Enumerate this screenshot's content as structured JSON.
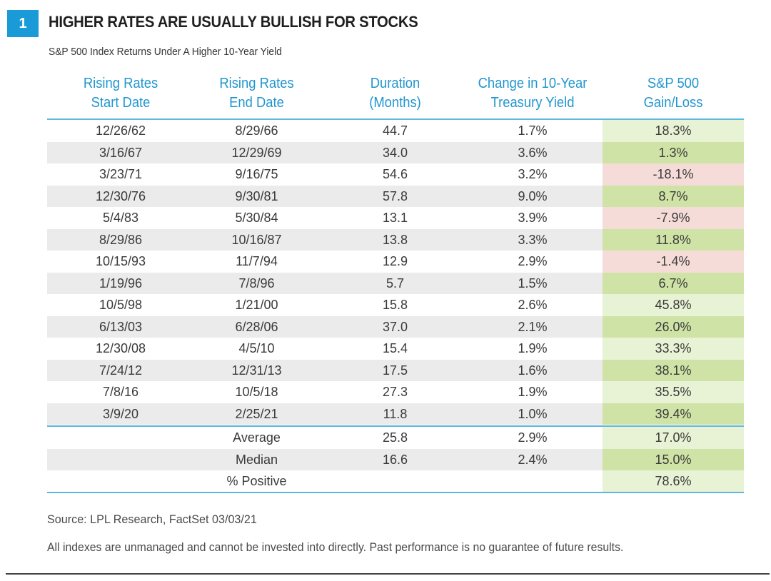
{
  "figure_number": "1",
  "title": "HIGHER RATES ARE USUALLY BULLISH FOR STOCKS",
  "subtitle": "S&P 500 Index Returns Under A Higher 10-Year Yield",
  "colors": {
    "accent": "#2196cf",
    "badge": "#1a9ad6",
    "rule": "#5fb6de",
    "row_shade": "#ebebeb",
    "gain_strong": "#cfe3a6",
    "gain_light": "#e8f2d4",
    "loss": "#f6dcd8"
  },
  "chart_data": {
    "type": "table",
    "title": "HIGHER RATES ARE USUALLY BULLISH FOR STOCKS",
    "subtitle": "S&P 500 Index Returns Under A Higher 10-Year Yield",
    "columns": [
      "Rising Rates\nStart Date",
      "Rising Rates\nEnd Date",
      "Duration\n(Months)",
      "Change in 10-Year\nTreasury Yield",
      "S&P 500\nGain/Loss"
    ],
    "column_headers": [
      [
        "Rising Rates",
        "Start Date"
      ],
      [
        "Rising Rates",
        "End Date"
      ],
      [
        "Duration",
        "(Months)"
      ],
      [
        "Change in 10-Year",
        "Treasury Yield"
      ],
      [
        "S&P 500",
        "Gain/Loss"
      ]
    ],
    "rows": [
      {
        "start": "12/26/62",
        "end": "8/29/66",
        "duration": "44.7",
        "yield_change": "1.7%",
        "gain_loss": "18.3%",
        "tone": "light"
      },
      {
        "start": "3/16/67",
        "end": "12/29/69",
        "duration": "34.0",
        "yield_change": "3.6%",
        "gain_loss": "1.3%",
        "tone": "strong"
      },
      {
        "start": "3/23/71",
        "end": "9/16/75",
        "duration": "54.6",
        "yield_change": "3.2%",
        "gain_loss": "-18.1%",
        "tone": "loss"
      },
      {
        "start": "12/30/76",
        "end": "9/30/81",
        "duration": "57.8",
        "yield_change": "9.0%",
        "gain_loss": "8.7%",
        "tone": "strong"
      },
      {
        "start": "5/4/83",
        "end": "5/30/84",
        "duration": "13.1",
        "yield_change": "3.9%",
        "gain_loss": "-7.9%",
        "tone": "loss"
      },
      {
        "start": "8/29/86",
        "end": "10/16/87",
        "duration": "13.8",
        "yield_change": "3.3%",
        "gain_loss": "11.8%",
        "tone": "strong"
      },
      {
        "start": "10/15/93",
        "end": "11/7/94",
        "duration": "12.9",
        "yield_change": "2.9%",
        "gain_loss": "-1.4%",
        "tone": "loss"
      },
      {
        "start": "1/19/96",
        "end": "7/8/96",
        "duration": "5.7",
        "yield_change": "1.5%",
        "gain_loss": "6.7%",
        "tone": "strong"
      },
      {
        "start": "10/5/98",
        "end": "1/21/00",
        "duration": "15.8",
        "yield_change": "2.6%",
        "gain_loss": "45.8%",
        "tone": "light"
      },
      {
        "start": "6/13/03",
        "end": "6/28/06",
        "duration": "37.0",
        "yield_change": "2.1%",
        "gain_loss": "26.0%",
        "tone": "strong"
      },
      {
        "start": "12/30/08",
        "end": "4/5/10",
        "duration": "15.4",
        "yield_change": "1.9%",
        "gain_loss": "33.3%",
        "tone": "light"
      },
      {
        "start": "7/24/12",
        "end": "12/31/13",
        "duration": "17.5",
        "yield_change": "1.6%",
        "gain_loss": "38.1%",
        "tone": "strong"
      },
      {
        "start": "7/8/16",
        "end": "10/5/18",
        "duration": "27.3",
        "yield_change": "1.9%",
        "gain_loss": "35.5%",
        "tone": "light"
      },
      {
        "start": "3/9/20",
        "end": "2/25/21",
        "duration": "11.8",
        "yield_change": "1.0%",
        "gain_loss": "39.4%",
        "tone": "strong"
      }
    ],
    "summary": [
      {
        "label": "Average",
        "duration": "25.8",
        "yield_change": "2.9%",
        "gain_loss": "17.0%",
        "tone": "light"
      },
      {
        "label": "Median",
        "duration": "16.6",
        "yield_change": "2.4%",
        "gain_loss": "15.0%",
        "tone": "strong"
      },
      {
        "label": "% Positive",
        "duration": "",
        "yield_change": "",
        "gain_loss": "78.6%",
        "tone": "light"
      }
    ]
  },
  "source": "Source: LPL Research, FactSet 03/03/21",
  "disclaimer": "All indexes are unmanaged and cannot be invested into directly. Past performance is no guarantee of future results."
}
